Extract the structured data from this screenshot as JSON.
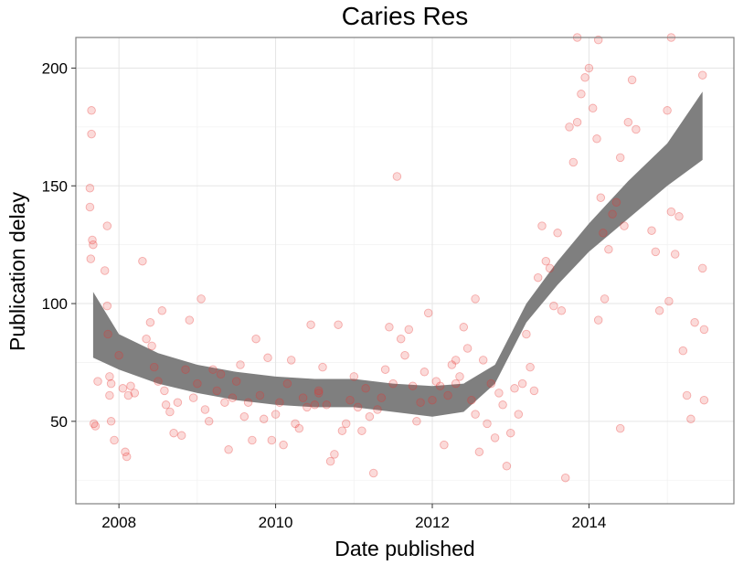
{
  "chart_data": {
    "type": "scatter",
    "title": "Caries Res",
    "xlabel": "Date published",
    "ylabel": "Publication delay",
    "xlim": [
      2007.45,
      2015.85
    ],
    "ylim": [
      15,
      213
    ],
    "x_ticks": [
      2008,
      2010,
      2012,
      2014
    ],
    "x_tick_labels": [
      "2008",
      "2010",
      "2012",
      "2014"
    ],
    "y_ticks": [
      50,
      100,
      150,
      200
    ],
    "y_tick_labels": [
      "50",
      "100",
      "150",
      "200"
    ],
    "grid": true,
    "point_color": "#e8312f",
    "point_opacity": 0.18,
    "band_color": "#7f7f7f",
    "points": [
      [
        2007.65,
        182
      ],
      [
        2007.65,
        172
      ],
      [
        2007.63,
        149
      ],
      [
        2007.63,
        141
      ],
      [
        2007.66,
        127
      ],
      [
        2007.67,
        125
      ],
      [
        2007.64,
        119
      ],
      [
        2007.68,
        49
      ],
      [
        2007.7,
        48
      ],
      [
        2007.73,
        67
      ],
      [
        2007.82,
        114
      ],
      [
        2007.85,
        133
      ],
      [
        2007.85,
        99
      ],
      [
        2007.86,
        87
      ],
      [
        2007.88,
        69
      ],
      [
        2007.9,
        66
      ],
      [
        2007.88,
        61
      ],
      [
        2007.9,
        50
      ],
      [
        2007.94,
        42
      ],
      [
        2008.0,
        78
      ],
      [
        2008.05,
        64
      ],
      [
        2008.08,
        37
      ],
      [
        2008.1,
        35
      ],
      [
        2008.12,
        61
      ],
      [
        2008.15,
        65
      ],
      [
        2008.2,
        62
      ],
      [
        2008.3,
        118
      ],
      [
        2008.35,
        85
      ],
      [
        2008.4,
        92
      ],
      [
        2008.42,
        82
      ],
      [
        2008.45,
        73
      ],
      [
        2008.5,
        67
      ],
      [
        2008.55,
        97
      ],
      [
        2008.58,
        63
      ],
      [
        2008.6,
        57
      ],
      [
        2008.65,
        54
      ],
      [
        2008.7,
        45
      ],
      [
        2008.75,
        58
      ],
      [
        2008.8,
        44
      ],
      [
        2008.85,
        72
      ],
      [
        2008.9,
        93
      ],
      [
        2008.95,
        60
      ],
      [
        2009.0,
        66
      ],
      [
        2009.05,
        102
      ],
      [
        2009.1,
        55
      ],
      [
        2009.15,
        50
      ],
      [
        2009.2,
        72
      ],
      [
        2009.25,
        63
      ],
      [
        2009.3,
        70
      ],
      [
        2009.35,
        58
      ],
      [
        2009.4,
        38
      ],
      [
        2009.45,
        60
      ],
      [
        2009.5,
        67
      ],
      [
        2009.55,
        74
      ],
      [
        2009.6,
        52
      ],
      [
        2009.65,
        58
      ],
      [
        2009.7,
        42
      ],
      [
        2009.75,
        85
      ],
      [
        2009.8,
        61
      ],
      [
        2009.85,
        51
      ],
      [
        2009.9,
        77
      ],
      [
        2009.95,
        42
      ],
      [
        2010.0,
        53
      ],
      [
        2010.05,
        58
      ],
      [
        2010.1,
        40
      ],
      [
        2010.15,
        66
      ],
      [
        2010.2,
        76
      ],
      [
        2010.25,
        49
      ],
      [
        2010.3,
        47
      ],
      [
        2010.35,
        60
      ],
      [
        2010.4,
        56
      ],
      [
        2010.45,
        91
      ],
      [
        2010.5,
        57
      ],
      [
        2010.55,
        62
      ],
      [
        2010.6,
        73
      ],
      [
        2010.65,
        57
      ],
      [
        2010.7,
        33
      ],
      [
        2010.75,
        36
      ],
      [
        2010.8,
        91
      ],
      [
        2010.85,
        46
      ],
      [
        2010.9,
        49
      ],
      [
        2010.95,
        59
      ],
      [
        2011.0,
        69
      ],
      [
        2011.05,
        56
      ],
      [
        2011.1,
        46
      ],
      [
        2011.15,
        64
      ],
      [
        2011.2,
        52
      ],
      [
        2011.25,
        28
      ],
      [
        2011.3,
        55
      ],
      [
        2011.35,
        60
      ],
      [
        2011.4,
        72
      ],
      [
        2011.45,
        90
      ],
      [
        2011.5,
        66
      ],
      [
        2011.55,
        154
      ],
      [
        2011.6,
        85
      ],
      [
        2011.65,
        78
      ],
      [
        2011.7,
        89
      ],
      [
        2011.75,
        65
      ],
      [
        2011.8,
        50
      ],
      [
        2011.85,
        58
      ],
      [
        2011.9,
        71
      ],
      [
        2011.95,
        96
      ],
      [
        2012.0,
        59
      ],
      [
        2012.05,
        67
      ],
      [
        2012.1,
        65
      ],
      [
        2012.15,
        40
      ],
      [
        2012.2,
        61
      ],
      [
        2012.25,
        74
      ],
      [
        2012.3,
        76
      ],
      [
        2012.35,
        69
      ],
      [
        2012.4,
        90
      ],
      [
        2012.45,
        81
      ],
      [
        2012.5,
        59
      ],
      [
        2012.55,
        53
      ],
      [
        2012.6,
        37
      ],
      [
        2012.65,
        76
      ],
      [
        2012.7,
        49
      ],
      [
        2012.75,
        66
      ],
      [
        2012.8,
        43
      ],
      [
        2012.85,
        62
      ],
      [
        2012.9,
        57
      ],
      [
        2012.95,
        31
      ],
      [
        2013.0,
        45
      ],
      [
        2013.05,
        64
      ],
      [
        2013.1,
        53
      ],
      [
        2013.15,
        66
      ],
      [
        2013.2,
        87
      ],
      [
        2013.25,
        73
      ],
      [
        2013.3,
        63
      ],
      [
        2013.35,
        111
      ],
      [
        2013.4,
        133
      ],
      [
        2013.45,
        118
      ],
      [
        2013.5,
        115
      ],
      [
        2013.55,
        99
      ],
      [
        2013.6,
        130
      ],
      [
        2013.65,
        97
      ],
      [
        2013.7,
        26
      ],
      [
        2013.75,
        175
      ],
      [
        2013.8,
        160
      ],
      [
        2013.85,
        177
      ],
      [
        2013.9,
        189
      ],
      [
        2013.95,
        196
      ],
      [
        2014.0,
        200
      ],
      [
        2014.05,
        183
      ],
      [
        2014.1,
        170
      ],
      [
        2014.12,
        212
      ],
      [
        2014.15,
        145
      ],
      [
        2014.18,
        130
      ],
      [
        2014.2,
        102
      ],
      [
        2014.25,
        123
      ],
      [
        2014.3,
        138
      ],
      [
        2014.35,
        143
      ],
      [
        2014.4,
        162
      ],
      [
        2014.45,
        133
      ],
      [
        2014.5,
        177
      ],
      [
        2014.55,
        195
      ],
      [
        2014.6,
        174
      ],
      [
        2014.4,
        47
      ],
      [
        2014.8,
        131
      ],
      [
        2014.85,
        122
      ],
      [
        2014.9,
        97
      ],
      [
        2015.0,
        182
      ],
      [
        2015.05,
        139
      ],
      [
        2015.1,
        121
      ],
      [
        2015.15,
        137
      ],
      [
        2015.2,
        80
      ],
      [
        2015.25,
        61
      ],
      [
        2015.3,
        51
      ],
      [
        2015.35,
        92
      ],
      [
        2015.45,
        197
      ],
      [
        2015.47,
        89
      ],
      [
        2015.47,
        59
      ],
      [
        2015.45,
        115
      ],
      [
        2015.05,
        213
      ],
      [
        2015.02,
        101
      ],
      [
        2014.12,
        93
      ],
      [
        2013.85,
        213
      ],
      [
        2012.55,
        102
      ],
      [
        2012.3,
        66
      ],
      [
        2010.55,
        63
      ]
    ],
    "smooth": {
      "x": [
        2007.67,
        2008.0,
        2008.5,
        2009.0,
        2009.5,
        2010.0,
        2010.5,
        2011.0,
        2011.5,
        2012.0,
        2012.4,
        2012.8,
        2013.2,
        2013.6,
        2014.0,
        2014.5,
        2015.0,
        2015.45
      ],
      "lower": [
        77,
        72,
        66,
        62,
        59,
        57,
        56,
        56,
        54,
        52,
        54,
        66,
        92,
        108,
        122,
        136,
        150,
        161
      ],
      "upper": [
        105,
        87,
        79,
        74,
        71,
        69,
        68,
        68,
        66,
        65,
        66,
        74,
        100,
        118,
        134,
        152,
        168,
        190
      ]
    }
  }
}
